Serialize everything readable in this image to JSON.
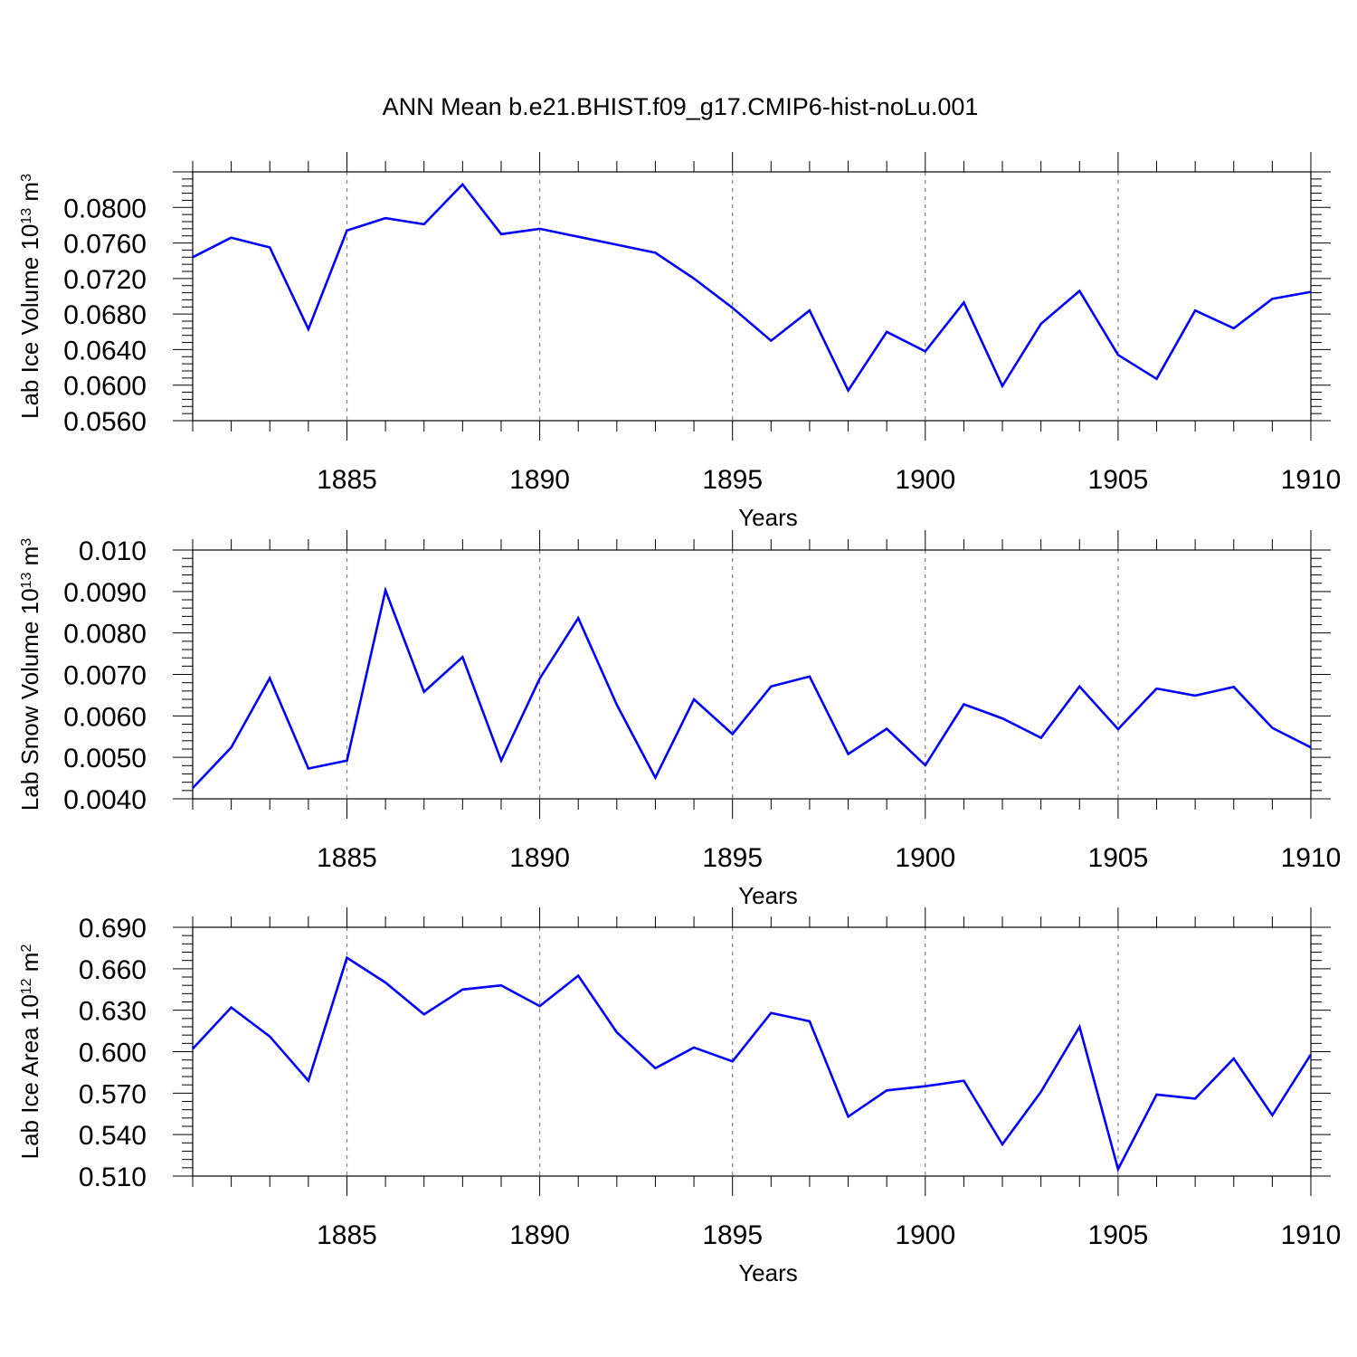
{
  "title": "ANN Mean b.e21.BHIST.f09_g17.CMIP6-hist-noLu.001",
  "colors": {
    "line": "#0000ff",
    "axis": "#000000",
    "grid": "#808080"
  },
  "chart_data": [
    {
      "type": "line",
      "xlabel": "Years",
      "ylabel": {
        "text": "Lab Ice Volume 10",
        "sup1": "13",
        "mid": " m",
        "sup2": "3"
      },
      "xlim": [
        1881,
        1910
      ],
      "ylim": [
        0.056,
        0.084
      ],
      "grid": "x-dashed",
      "xticks": [
        1885,
        1890,
        1895,
        1900,
        1905,
        1910
      ],
      "yticks": [
        0.056,
        0.06,
        0.064,
        0.068,
        0.072,
        0.076,
        0.08
      ],
      "ytick_labels": [
        "0.0560",
        "0.0600",
        "0.0640",
        "0.0680",
        "0.0720",
        "0.0760",
        "0.0800"
      ],
      "x": [
        1881,
        1882,
        1883,
        1884,
        1885,
        1886,
        1887,
        1888,
        1889,
        1890,
        1891,
        1892,
        1893,
        1894,
        1895,
        1896,
        1897,
        1898,
        1899,
        1900,
        1901,
        1902,
        1903,
        1904,
        1905,
        1906,
        1907,
        1908,
        1909,
        1910
      ],
      "series": [
        {
          "values": [
            0.0744,
            0.0766,
            0.0755,
            0.0663,
            0.0774,
            0.0788,
            0.0781,
            0.0826,
            0.077,
            0.0776,
            0.0767,
            0.0758,
            0.0749,
            0.072,
            0.0687,
            0.065,
            0.0684,
            0.0594,
            0.066,
            0.0638,
            0.0693,
            0.0599,
            0.0669,
            0.0706,
            0.0634,
            0.0607,
            0.0684,
            0.0664,
            0.0697,
            0.0705
          ]
        }
      ]
    },
    {
      "type": "line",
      "xlabel": "Years",
      "ylabel": {
        "text": "Lab Snow Volume 10",
        "sup1": "13",
        "mid": " m",
        "sup2": "3"
      },
      "xlim": [
        1881,
        1910
      ],
      "ylim": [
        0.004,
        0.01
      ],
      "grid": "x-dashed",
      "xticks": [
        1885,
        1890,
        1895,
        1900,
        1905,
        1910
      ],
      "yticks": [
        0.004,
        0.005,
        0.006,
        0.007,
        0.008,
        0.009,
        0.01
      ],
      "ytick_labels": [
        "0.0040",
        "0.0050",
        "0.0060",
        "0.0070",
        "0.0080",
        "0.0090",
        "0.010"
      ],
      "x": [
        1881,
        1882,
        1883,
        1884,
        1885,
        1886,
        1887,
        1888,
        1889,
        1890,
        1891,
        1892,
        1893,
        1894,
        1895,
        1896,
        1897,
        1898,
        1899,
        1900,
        1901,
        1902,
        1903,
        1904,
        1905,
        1906,
        1907,
        1908,
        1909,
        1910
      ],
      "series": [
        {
          "values": [
            0.00426,
            0.00524,
            0.00691,
            0.00473,
            0.00492,
            0.00903,
            0.00658,
            0.00742,
            0.00492,
            0.0069,
            0.00836,
            0.00627,
            0.00451,
            0.0064,
            0.00556,
            0.00671,
            0.00695,
            0.00508,
            0.00569,
            0.00481,
            0.00628,
            0.00594,
            0.00547,
            0.00671,
            0.00568,
            0.00666,
            0.00649,
            0.0067,
            0.00571,
            0.00524
          ]
        }
      ]
    },
    {
      "type": "line",
      "xlabel": "Years",
      "ylabel": {
        "text": "Lab Ice Area 10",
        "sup1": "12",
        "mid": " m",
        "sup2": "2"
      },
      "xlim": [
        1881,
        1910
      ],
      "ylim": [
        0.51,
        0.69
      ],
      "grid": "x-dashed",
      "xticks": [
        1885,
        1890,
        1895,
        1900,
        1905,
        1910
      ],
      "yticks": [
        0.51,
        0.54,
        0.57,
        0.6,
        0.63,
        0.66,
        0.69
      ],
      "ytick_labels": [
        "0.510",
        "0.540",
        "0.570",
        "0.600",
        "0.630",
        "0.660",
        "0.690"
      ],
      "x": [
        1881,
        1882,
        1883,
        1884,
        1885,
        1886,
        1887,
        1888,
        1889,
        1890,
        1891,
        1892,
        1893,
        1894,
        1895,
        1896,
        1897,
        1898,
        1899,
        1900,
        1901,
        1902,
        1903,
        1904,
        1905,
        1906,
        1907,
        1908,
        1909,
        1910
      ],
      "series": [
        {
          "values": [
            0.602,
            0.632,
            0.611,
            0.579,
            0.668,
            0.65,
            0.627,
            0.645,
            0.648,
            0.633,
            0.655,
            0.614,
            0.588,
            0.603,
            0.593,
            0.628,
            0.622,
            0.553,
            0.572,
            0.575,
            0.579,
            0.533,
            0.571,
            0.618,
            0.515,
            0.569,
            0.566,
            0.595,
            0.554,
            0.598
          ]
        }
      ]
    }
  ]
}
